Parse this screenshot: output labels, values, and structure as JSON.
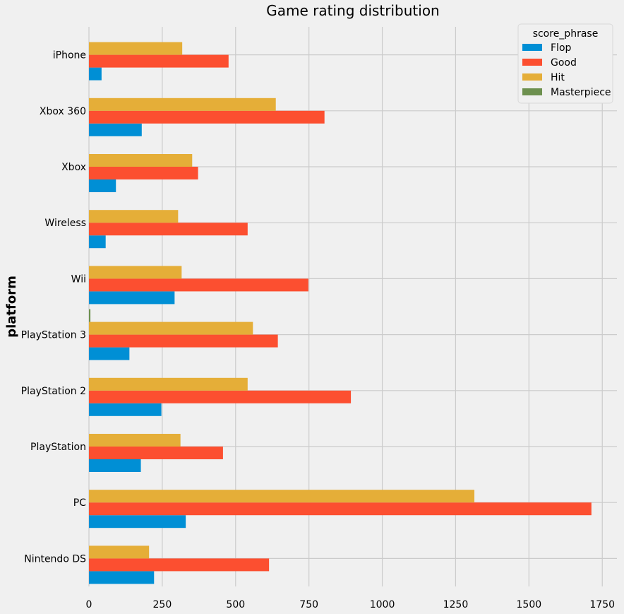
{
  "chart_data": {
    "type": "bar",
    "orientation": "horizontal",
    "title": "Game rating distribution",
    "xlabel": "",
    "ylabel": "platform",
    "categories": [
      "Nintendo DS",
      "PC",
      "PlayStation",
      "PlayStation 2",
      "PlayStation 3",
      "Wii",
      "Wireless",
      "Xbox",
      "Xbox 360",
      "iPhone"
    ],
    "series": [
      {
        "name": "Flop",
        "color": "#008fd5",
        "values": [
          222,
          330,
          177,
          247,
          138,
          292,
          57,
          92,
          180,
          43
        ]
      },
      {
        "name": "Good",
        "color": "#fc4f30",
        "values": [
          614,
          1713,
          457,
          893,
          644,
          748,
          541,
          372,
          803,
          476
        ]
      },
      {
        "name": "Hit",
        "color": "#e5ae38",
        "values": [
          205,
          1314,
          312,
          541,
          559,
          316,
          304,
          352,
          637,
          318
        ]
      },
      {
        "name": "Masterpiece",
        "color": "#6d904f",
        "values": [
          0,
          0,
          0,
          0,
          5,
          0,
          0,
          0,
          0,
          0
        ]
      }
    ],
    "xlim": [
      0,
      1800
    ],
    "xticks": [
      0,
      250,
      500,
      750,
      1000,
      1250,
      1500,
      1750
    ],
    "grid": true,
    "legend": {
      "title": "score_phrase",
      "placement": "top-right"
    }
  }
}
